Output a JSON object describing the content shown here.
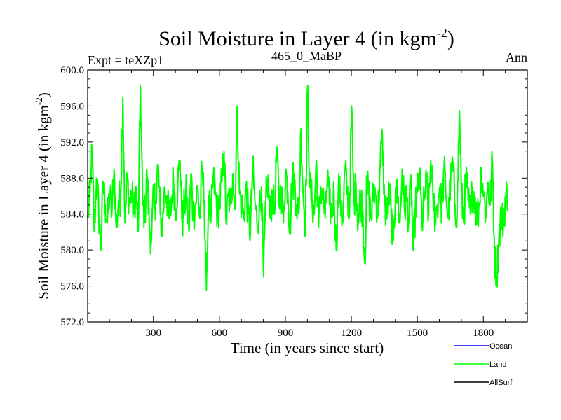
{
  "chart_data": {
    "type": "line",
    "title": "Soil Moisture in Layer 4 (in kgm",
    "title_sup": "-2",
    "title_end": ")",
    "subtitle_left": "Expt = teXZp1",
    "subtitle_center": "465_0_MaBP",
    "subtitle_right": "Ann",
    "xlabel": "Time (in years since start)",
    "ylabel": "Soil Moisture in Layer 4 (in kgm",
    "ylabel_sup": "-2",
    "ylabel_end": ")",
    "xlim": [
      1,
      2000
    ],
    "ylim": [
      572,
      600
    ],
    "x_ticks": [
      300,
      600,
      900,
      1200,
      1500,
      1800
    ],
    "x_tick_labels": [
      "300",
      "600",
      "900",
      "1200",
      "1500",
      "1800"
    ],
    "y_ticks": [
      572,
      576,
      580,
      584,
      588,
      592,
      596,
      600
    ],
    "y_tick_labels": [
      "572.0",
      "576.0",
      "580.0",
      "584.0",
      "588.0",
      "592.0",
      "596.0",
      "600.0"
    ],
    "series": [
      {
        "name": "Ocean",
        "color": "#0000ff",
        "values": []
      },
      {
        "name": "Land",
        "color": "#00ff00",
        "x_start": 1,
        "x_step": 10,
        "values": [
          583.5,
          586.0,
          591.0,
          582.0,
          588.0,
          584.5,
          580.0,
          587.5,
          585.0,
          583.0,
          586.5,
          584.0,
          589.0,
          582.5,
          585.5,
          586.0,
          597.0,
          583.0,
          588.0,
          585.0,
          586.5,
          584.0,
          587.0,
          582.0,
          598.2,
          585.0,
          584.0,
          588.5,
          583.0,
          581.0,
          586.0,
          585.5,
          589.5,
          584.0,
          582.5,
          587.0,
          586.0,
          583.5,
          585.0,
          588.0,
          584.5,
          587.5,
          590.0,
          583.0,
          585.0,
          586.5,
          582.0,
          588.5,
          584.0,
          585.0,
          587.0,
          583.5,
          589.0,
          585.5,
          575.5,
          586.0,
          583.0,
          588.0,
          586.5,
          584.0,
          585.0,
          587.5,
          591.0,
          583.0,
          586.0,
          585.0,
          588.5,
          584.5,
          596.0,
          586.5,
          585.0,
          583.5,
          587.0,
          584.0,
          582.0,
          589.0,
          585.5,
          583.0,
          584.5,
          587.0,
          577.0,
          585.5,
          588.0,
          583.5,
          586.5,
          584.0,
          591.5,
          585.0,
          587.0,
          583.0,
          589.0,
          586.5,
          582.5,
          588.0,
          587.5,
          585.0,
          584.0,
          593.5,
          586.0,
          583.0,
          598.3,
          587.0,
          585.5,
          584.0,
          590.0,
          582.5,
          587.0,
          586.0,
          583.5,
          588.0,
          585.0,
          584.0,
          586.5,
          580.0,
          587.0,
          585.5,
          583.0,
          589.0,
          586.5,
          584.0,
          596.0,
          585.0,
          587.5,
          583.0,
          586.0,
          584.5,
          578.5,
          588.0,
          585.5,
          583.5,
          587.0,
          586.0,
          584.0,
          589.5,
          592.5,
          585.0,
          583.5,
          586.5,
          584.0,
          581.0,
          587.0,
          585.5,
          583.0,
          589.0,
          584.5,
          586.0,
          583.0,
          588.0,
          580.0,
          584.5,
          586.5,
          588.0,
          583.0,
          585.5,
          587.5,
          584.0,
          590.0,
          586.0,
          583.5,
          585.0,
          587.0,
          584.5,
          589.0,
          586.0,
          583.5,
          587.5,
          589.5,
          585.0,
          584.0,
          595.5,
          586.0,
          583.0,
          588.5,
          585.5,
          584.0,
          587.0,
          586.0,
          583.5,
          585.0,
          589.0,
          586.5,
          584.0,
          587.5,
          585.0,
          590.0,
          579.5,
          577.0,
          581.5,
          584.0,
          583.0,
          586.0
        ]
      },
      {
        "name": "AllSurf",
        "color": "#000000",
        "values": []
      }
    ],
    "legend_position": "bottom-right",
    "grid": false
  }
}
